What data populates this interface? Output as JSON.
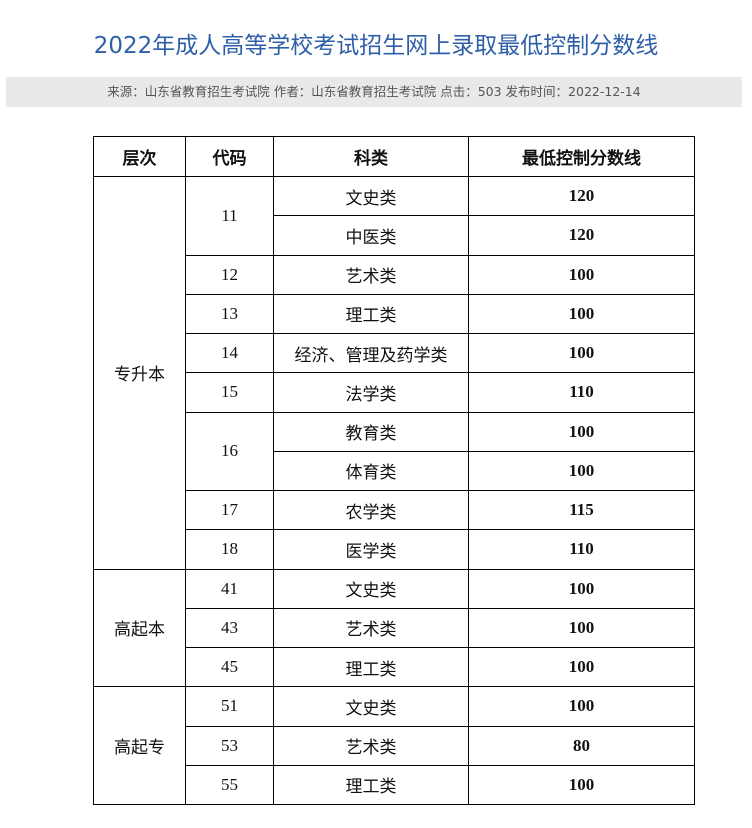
{
  "header": {
    "title": "2022年成人高等学校考试招生网上录取最低控制分数线",
    "meta": "来源：山东省教育招生考试院 作者：山东省教育招生考试院 点击：503 发布时间：2022-12-14"
  },
  "table": {
    "columns": [
      "层次",
      "代码",
      "科类",
      "最低控制分数线"
    ],
    "groups": [
      {
        "level": "专升本",
        "codes": [
          {
            "code": "11",
            "subjects": [
              {
                "name": "文史类",
                "score": 120
              },
              {
                "name": "中医类",
                "score": 120
              }
            ]
          },
          {
            "code": "12",
            "subjects": [
              {
                "name": "艺术类",
                "score": 100
              }
            ]
          },
          {
            "code": "13",
            "subjects": [
              {
                "name": "理工类",
                "score": 100
              }
            ]
          },
          {
            "code": "14",
            "subjects": [
              {
                "name": "经济、管理及药学类",
                "score": 100
              }
            ]
          },
          {
            "code": "15",
            "subjects": [
              {
                "name": "法学类",
                "score": 110
              }
            ]
          },
          {
            "code": "16",
            "subjects": [
              {
                "name": "教育类",
                "score": 100
              },
              {
                "name": "体育类",
                "score": 100
              }
            ]
          },
          {
            "code": "17",
            "subjects": [
              {
                "name": "农学类",
                "score": 115
              }
            ]
          },
          {
            "code": "18",
            "subjects": [
              {
                "name": "医学类",
                "score": 110
              }
            ]
          }
        ]
      },
      {
        "level": "高起本",
        "codes": [
          {
            "code": "41",
            "subjects": [
              {
                "name": "文史类",
                "score": 100
              }
            ]
          },
          {
            "code": "43",
            "subjects": [
              {
                "name": "艺术类",
                "score": 100
              }
            ]
          },
          {
            "code": "45",
            "subjects": [
              {
                "name": "理工类",
                "score": 100
              }
            ]
          }
        ]
      },
      {
        "level": "高起专",
        "codes": [
          {
            "code": "51",
            "subjects": [
              {
                "name": "文史类",
                "score": 100
              }
            ]
          },
          {
            "code": "53",
            "subjects": [
              {
                "name": "艺术类",
                "score": 80
              }
            ]
          },
          {
            "code": "55",
            "subjects": [
              {
                "name": "理工类",
                "score": 100
              }
            ]
          }
        ]
      }
    ]
  }
}
